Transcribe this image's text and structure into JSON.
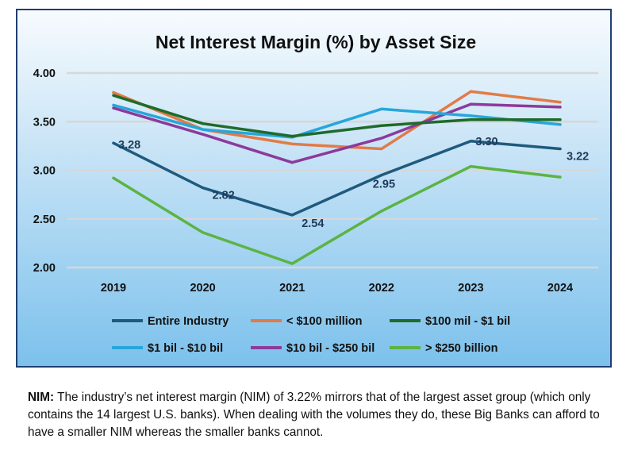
{
  "chart_data": {
    "type": "line",
    "title": "Net Interest Margin (%) by Asset Size",
    "xlabel": "",
    "ylabel": "",
    "categories": [
      "2019",
      "2020",
      "2021",
      "2022",
      "2023",
      "2024"
    ],
    "ylim": [
      2.0,
      4.0
    ],
    "yticks": [
      "2.00",
      "2.50",
      "3.00",
      "3.50",
      "4.00"
    ],
    "grid": true,
    "legend_position": "bottom",
    "series": [
      {
        "name": "Entire Industry",
        "color": "#1f5a7e",
        "values": [
          3.28,
          2.82,
          2.54,
          2.95,
          3.3,
          3.22
        ],
        "labels": [
          "3.28",
          "2.82",
          "2.54",
          "2.95",
          "3.30",
          "3.22"
        ]
      },
      {
        "name": "< $100 million",
        "color": "#e27b46",
        "values": [
          3.8,
          3.42,
          3.27,
          3.22,
          3.81,
          3.7
        ]
      },
      {
        "name": "$100 mil - $1 bil",
        "color": "#1e6b2c",
        "values": [
          3.77,
          3.48,
          3.35,
          3.46,
          3.52,
          3.52
        ]
      },
      {
        "name": "$1 bil - $10 bil",
        "color": "#27a6db",
        "values": [
          3.67,
          3.42,
          3.34,
          3.63,
          3.56,
          3.47
        ]
      },
      {
        "name": "$10 bil - $250 bil",
        "color": "#8c3a9c",
        "values": [
          3.64,
          3.37,
          3.08,
          3.33,
          3.68,
          3.65
        ]
      },
      {
        "name": "> $250 billion",
        "color": "#5bb443",
        "values": [
          2.92,
          2.36,
          2.04,
          2.58,
          3.04,
          2.93
        ]
      }
    ]
  },
  "caption": {
    "label": "NIM:",
    "text": " The industry’s net interest margin (NIM) of 3.22% mirrors that of the largest asset group (which only contains the 14 largest U.S. banks). When dealing with the volumes they do, these Big Banks can afford to have a smaller NIM whereas the smaller banks cannot."
  }
}
